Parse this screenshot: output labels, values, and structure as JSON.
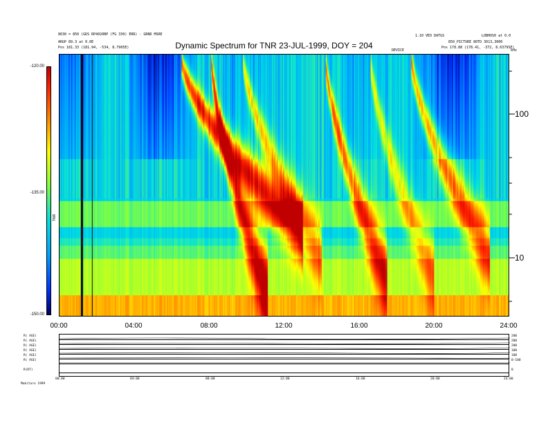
{
  "header": {
    "left_line1": "8630 = 850 (GDS RP4020BP (FG 330) ERR) - GRND MSRE",
    "left_line2": "ARGP 89.3 at 0.0E",
    "left_line3_label": "Pos",
    "left_line3_value": "181.33 (181.94, -534, 8.7905E)",
    "right_line1": "1.10 VEO DATGS",
    "right_line2": "LOBHOS0 at 0.0",
    "right_line3": "850_PICTURE 80TD 3013,3000",
    "right_line4_label": "Pos",
    "right_line4_value": "178.88 (178.41, -372, 8.6379SE)",
    "small_mid": "DEVICE",
    "right_corner": "kHz"
  },
  "chart_data": {
    "type": "heatmap",
    "title": "Dynamic Spectrum for TNR 23-JUL-1999, DOY = 204",
    "x_tick_labels": [
      "00:00",
      "04:00",
      "08:00",
      "12:00",
      "16:00",
      "20:00",
      "24:00"
    ],
    "x_range_hours": [
      0,
      24
    ],
    "y_tick_labels": [
      "100",
      "10"
    ],
    "y_scale": "log",
    "y_range_khz": [
      4,
      250
    ],
    "colorbar": {
      "tick_labels": [
        "-120.00",
        "-135.00",
        "-150.00"
      ],
      "range": [
        -150,
        -120
      ],
      "unit_label": "TNR",
      "colors": [
        "#000060",
        "#0030ff",
        "#00a0ff",
        "#00e0e0",
        "#80ff40",
        "#ffff00",
        "#ff8000",
        "#ff2000",
        "#c00000"
      ]
    }
  },
  "orbit_panel": {
    "left_labels": [
      "R(  AGE)",
      "R(  AGE)",
      "R(  AGE)",
      "R(  AGE)",
      "R(  AGE)",
      "R(  AGE)",
      "R(RT)"
    ],
    "right_labels": [
      "200",
      "200",
      "200",
      "100",
      "100",
      "0-100",
      "0"
    ],
    "x_tick_labels": [
      "00:00",
      "04:00",
      "08:00",
      "12:00",
      "16:00",
      "20:00",
      "24:00"
    ],
    "footer": "Makitaro 1999"
  }
}
